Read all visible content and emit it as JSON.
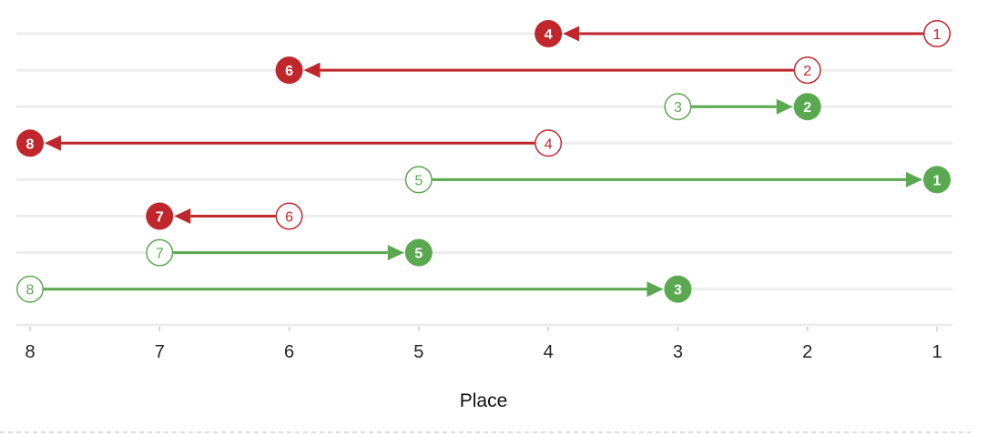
{
  "chart_data": {
    "type": "arrow-dumbbell",
    "xlabel": "Place",
    "x_ticks": [
      8,
      7,
      6,
      5,
      4,
      3,
      2,
      1
    ],
    "x_reversed": true,
    "grid": true,
    "colors": {
      "worse": "#c0272d",
      "better": "#5aa84f",
      "grid": "#ececec",
      "axis_text": "#222222"
    },
    "rows": [
      {
        "from": 1,
        "to": 4
      },
      {
        "from": 2,
        "to": 6
      },
      {
        "from": 3,
        "to": 2
      },
      {
        "from": 4,
        "to": 8
      },
      {
        "from": 5,
        "to": 1
      },
      {
        "from": 6,
        "to": 7
      },
      {
        "from": 7,
        "to": 5
      },
      {
        "from": 8,
        "to": 3
      }
    ]
  }
}
